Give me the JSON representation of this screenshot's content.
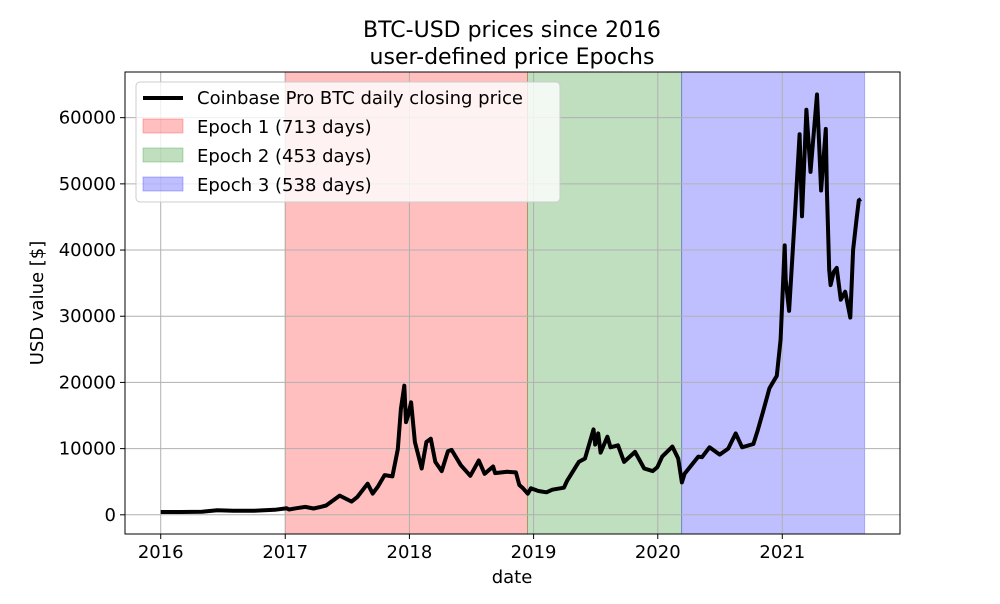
{
  "chart_data": {
    "type": "line",
    "title": [
      "BTC-USD prices since 2016",
      "user-defined price Epochs"
    ],
    "xlabel": "date",
    "ylabel": "USD value [$]",
    "xlim": [
      "2015-09-18",
      "2021-12-13"
    ],
    "ylim": [
      -2900,
      66900
    ],
    "grid": true,
    "legend_placement": "upper-left",
    "x_ticks": [
      {
        "date": "2016-01-01",
        "label": "2016"
      },
      {
        "date": "2017-01-01",
        "label": "2017"
      },
      {
        "date": "2018-01-01",
        "label": "2018"
      },
      {
        "date": "2019-01-01",
        "label": "2019"
      },
      {
        "date": "2020-01-01",
        "label": "2020"
      },
      {
        "date": "2021-01-01",
        "label": "2021"
      }
    ],
    "y_ticks": [
      {
        "value": 0,
        "label": "0"
      },
      {
        "value": 10000,
        "label": "10000"
      },
      {
        "value": 20000,
        "label": "20000"
      },
      {
        "value": 30000,
        "label": "30000"
      },
      {
        "value": 40000,
        "label": "40000"
      },
      {
        "value": 50000,
        "label": "50000"
      },
      {
        "value": 60000,
        "label": "60000"
      }
    ],
    "epochs": [
      {
        "name": "Epoch 1 (713 days)",
        "start": "2017-01-01",
        "end": "2018-12-14",
        "color": "#ff0000"
      },
      {
        "name": "Epoch 2 (453 days)",
        "start": "2018-12-14",
        "end": "2020-03-11",
        "color": "#008000"
      },
      {
        "name": "Epoch 3 (538 days)",
        "start": "2020-03-11",
        "end": "2021-08-31",
        "color": "#0000ff"
      }
    ],
    "series": [
      {
        "name": "Coinbase Pro BTC daily closing price",
        "color": "#000000",
        "points": [
          [
            "2016-01-01",
            430
          ],
          [
            "2016-03-01",
            430
          ],
          [
            "2016-05-01",
            450
          ],
          [
            "2016-06-15",
            700
          ],
          [
            "2016-08-01",
            600
          ],
          [
            "2016-10-01",
            610
          ],
          [
            "2016-12-01",
            750
          ],
          [
            "2016-12-31",
            960
          ],
          [
            "2017-01-05",
            1000
          ],
          [
            "2017-01-12",
            800
          ],
          [
            "2017-02-01",
            980
          ],
          [
            "2017-03-01",
            1200
          ],
          [
            "2017-03-25",
            950
          ],
          [
            "2017-04-15",
            1200
          ],
          [
            "2017-05-01",
            1400
          ],
          [
            "2017-05-25",
            2300
          ],
          [
            "2017-06-10",
            2900
          ],
          [
            "2017-07-15",
            2000
          ],
          [
            "2017-08-01",
            2700
          ],
          [
            "2017-08-31",
            4700
          ],
          [
            "2017-09-15",
            3200
          ],
          [
            "2017-10-01",
            4300
          ],
          [
            "2017-10-20",
            6000
          ],
          [
            "2017-11-12",
            5800
          ],
          [
            "2017-11-28",
            9900
          ],
          [
            "2017-12-07",
            16000
          ],
          [
            "2017-12-17",
            19500
          ],
          [
            "2017-12-22",
            14000
          ],
          [
            "2017-12-28",
            15000
          ],
          [
            "2018-01-06",
            17000
          ],
          [
            "2018-01-17",
            11000
          ],
          [
            "2018-02-06",
            7000
          ],
          [
            "2018-02-20",
            11000
          ],
          [
            "2018-03-05",
            11500
          ],
          [
            "2018-03-18",
            8000
          ],
          [
            "2018-04-06",
            6600
          ],
          [
            "2018-04-24",
            9600
          ],
          [
            "2018-05-05",
            9800
          ],
          [
            "2018-06-01",
            7500
          ],
          [
            "2018-06-29",
            5900
          ],
          [
            "2018-07-24",
            8200
          ],
          [
            "2018-08-10",
            6200
          ],
          [
            "2018-09-04",
            7300
          ],
          [
            "2018-09-10",
            6300
          ],
          [
            "2018-10-15",
            6500
          ],
          [
            "2018-11-10",
            6400
          ],
          [
            "2018-11-20",
            4500
          ],
          [
            "2018-12-01",
            4000
          ],
          [
            "2018-12-15",
            3200
          ],
          [
            "2018-12-24",
            4000
          ],
          [
            "2019-01-15",
            3600
          ],
          [
            "2019-02-08",
            3400
          ],
          [
            "2019-02-25",
            3800
          ],
          [
            "2019-03-31",
            4100
          ],
          [
            "2019-04-10",
            5200
          ],
          [
            "2019-05-14",
            8000
          ],
          [
            "2019-06-01",
            8500
          ],
          [
            "2019-06-26",
            12900
          ],
          [
            "2019-07-01",
            10600
          ],
          [
            "2019-07-10",
            12300
          ],
          [
            "2019-07-17",
            9400
          ],
          [
            "2019-08-06",
            11800
          ],
          [
            "2019-08-15",
            10200
          ],
          [
            "2019-09-06",
            10500
          ],
          [
            "2019-09-24",
            8000
          ],
          [
            "2019-10-26",
            9500
          ],
          [
            "2019-11-22",
            7000
          ],
          [
            "2019-12-17",
            6600
          ],
          [
            "2019-12-31",
            7200
          ],
          [
            "2020-01-14",
            8800
          ],
          [
            "2020-02-13",
            10300
          ],
          [
            "2020-03-01",
            8500
          ],
          [
            "2020-03-12",
            4900
          ],
          [
            "2020-03-20",
            6200
          ],
          [
            "2020-04-29",
            8800
          ],
          [
            "2020-05-10",
            8700
          ],
          [
            "2020-06-01",
            10200
          ],
          [
            "2020-07-01",
            9100
          ],
          [
            "2020-07-26",
            10000
          ],
          [
            "2020-08-17",
            12300
          ],
          [
            "2020-09-05",
            10200
          ],
          [
            "2020-10-08",
            10700
          ],
          [
            "2020-10-21",
            12800
          ],
          [
            "2020-11-05",
            15500
          ],
          [
            "2020-11-24",
            19100
          ],
          [
            "2020-12-01",
            19700
          ],
          [
            "2020-12-16",
            21000
          ],
          [
            "2020-12-27",
            26500
          ],
          [
            "2021-01-08",
            40700
          ],
          [
            "2021-01-11",
            35500
          ],
          [
            "2021-01-21",
            30800
          ],
          [
            "2021-02-08",
            46000
          ],
          [
            "2021-02-21",
            57500
          ],
          [
            "2021-02-28",
            45100
          ],
          [
            "2021-03-13",
            61200
          ],
          [
            "2021-03-25",
            51800
          ],
          [
            "2021-04-13",
            63500
          ],
          [
            "2021-04-25",
            49000
          ],
          [
            "2021-05-09",
            58300
          ],
          [
            "2021-05-12",
            49000
          ],
          [
            "2021-05-19",
            37000
          ],
          [
            "2021-05-23",
            34700
          ],
          [
            "2021-06-01",
            36700
          ],
          [
            "2021-06-10",
            37300
          ],
          [
            "2021-06-22",
            32500
          ],
          [
            "2021-07-05",
            33700
          ],
          [
            "2021-07-20",
            29800
          ],
          [
            "2021-07-28",
            40000
          ],
          [
            "2021-08-07",
            44600
          ],
          [
            "2021-08-14",
            47500
          ],
          [
            "2021-08-20",
            47700
          ]
        ]
      }
    ]
  }
}
